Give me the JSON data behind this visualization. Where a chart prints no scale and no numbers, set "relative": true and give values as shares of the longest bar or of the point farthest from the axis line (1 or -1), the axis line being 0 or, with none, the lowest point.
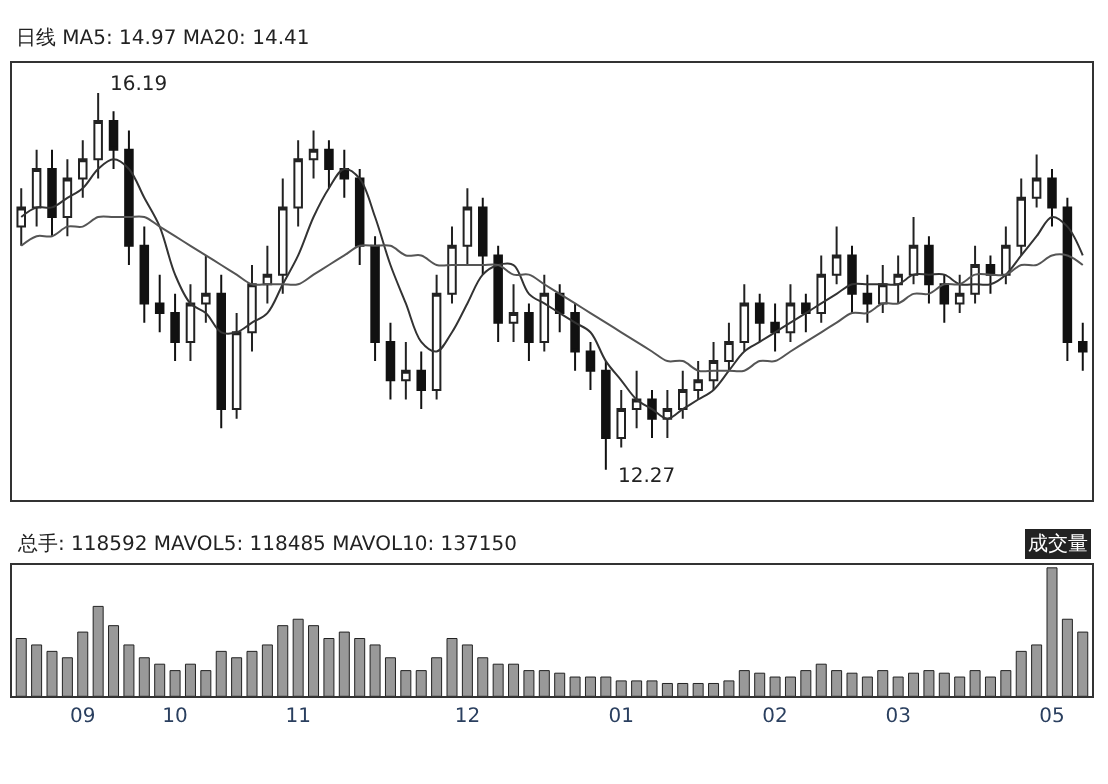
{
  "chart_data": [
    {
      "type": "candlestick",
      "title": "日线 MA5: 14.97 MA20: 14.41",
      "tick_labels": false,
      "categories": [
        null,
        null,
        null,
        null,
        "09",
        null,
        null,
        null,
        null,
        null,
        "10",
        null,
        null,
        null,
        null,
        null,
        null,
        null,
        "11",
        null,
        null,
        null,
        null,
        null,
        null,
        null,
        null,
        null,
        null,
        "12",
        null,
        null,
        null,
        null,
        null,
        null,
        null,
        null,
        null,
        "01",
        null,
        null,
        null,
        null,
        null,
        null,
        null,
        null,
        null,
        "02",
        null,
        null,
        null,
        null,
        null,
        null,
        null,
        "03",
        null,
        null,
        null,
        null,
        null,
        null,
        null,
        null,
        null,
        "05",
        null,
        null
      ],
      "ohlc": [
        [
          14.8,
          15.2,
          14.6,
          15.0
        ],
        [
          15.0,
          15.6,
          14.8,
          15.4
        ],
        [
          15.4,
          15.6,
          14.7,
          14.9
        ],
        [
          14.9,
          15.5,
          14.7,
          15.3
        ],
        [
          15.3,
          15.7,
          15.1,
          15.5
        ],
        [
          15.5,
          16.19,
          15.3,
          15.9
        ],
        [
          15.9,
          16.0,
          15.4,
          15.6
        ],
        [
          15.6,
          15.8,
          14.4,
          14.6
        ],
        [
          14.6,
          14.8,
          13.8,
          14.0
        ],
        [
          14.0,
          14.3,
          13.7,
          13.9
        ],
        [
          13.9,
          14.1,
          13.4,
          13.6
        ],
        [
          13.6,
          14.2,
          13.4,
          14.0
        ],
        [
          14.0,
          14.5,
          13.8,
          14.1
        ],
        [
          14.1,
          14.3,
          12.7,
          12.9
        ],
        [
          12.9,
          13.9,
          12.8,
          13.7
        ],
        [
          13.7,
          14.4,
          13.5,
          14.2
        ],
        [
          14.2,
          14.6,
          14.0,
          14.3
        ],
        [
          14.3,
          15.3,
          14.1,
          15.0
        ],
        [
          15.0,
          15.7,
          14.8,
          15.5
        ],
        [
          15.5,
          15.8,
          15.3,
          15.6
        ],
        [
          15.6,
          15.7,
          15.2,
          15.4
        ],
        [
          15.4,
          15.6,
          15.1,
          15.3
        ],
        [
          15.3,
          15.4,
          14.4,
          14.6
        ],
        [
          14.6,
          14.7,
          13.4,
          13.6
        ],
        [
          13.6,
          13.8,
          13.0,
          13.2
        ],
        [
          13.2,
          13.6,
          13.0,
          13.3
        ],
        [
          13.3,
          13.5,
          12.9,
          13.1
        ],
        [
          13.1,
          14.3,
          13.0,
          14.1
        ],
        [
          14.1,
          14.8,
          14.0,
          14.6
        ],
        [
          14.6,
          15.2,
          14.4,
          15.0
        ],
        [
          15.0,
          15.1,
          14.3,
          14.5
        ],
        [
          14.5,
          14.6,
          13.6,
          13.8
        ],
        [
          13.8,
          14.2,
          13.6,
          13.9
        ],
        [
          13.9,
          14.0,
          13.4,
          13.6
        ],
        [
          13.6,
          14.3,
          13.5,
          14.1
        ],
        [
          14.1,
          14.2,
          13.7,
          13.9
        ],
        [
          13.9,
          14.0,
          13.3,
          13.5
        ],
        [
          13.5,
          13.6,
          13.1,
          13.3
        ],
        [
          13.3,
          13.4,
          12.27,
          12.6
        ],
        [
          12.6,
          13.1,
          12.5,
          12.9
        ],
        [
          12.9,
          13.3,
          12.7,
          13.0
        ],
        [
          13.0,
          13.1,
          12.6,
          12.8
        ],
        [
          12.8,
          13.1,
          12.6,
          12.9
        ],
        [
          12.9,
          13.3,
          12.8,
          13.1
        ],
        [
          13.1,
          13.4,
          13.0,
          13.2
        ],
        [
          13.2,
          13.6,
          13.1,
          13.4
        ],
        [
          13.4,
          13.8,
          13.3,
          13.6
        ],
        [
          13.6,
          14.2,
          13.5,
          14.0
        ],
        [
          14.0,
          14.1,
          13.6,
          13.8
        ],
        [
          13.8,
          14.0,
          13.5,
          13.7
        ],
        [
          13.7,
          14.2,
          13.6,
          14.0
        ],
        [
          14.0,
          14.1,
          13.7,
          13.9
        ],
        [
          13.9,
          14.5,
          13.8,
          14.3
        ],
        [
          14.3,
          14.8,
          14.2,
          14.5
        ],
        [
          14.5,
          14.6,
          13.9,
          14.1
        ],
        [
          14.1,
          14.3,
          13.8,
          14.0
        ],
        [
          14.0,
          14.4,
          13.9,
          14.2
        ],
        [
          14.2,
          14.5,
          14.0,
          14.3
        ],
        [
          14.3,
          14.9,
          14.2,
          14.6
        ],
        [
          14.6,
          14.7,
          14.0,
          14.2
        ],
        [
          14.2,
          14.3,
          13.8,
          14.0
        ],
        [
          14.0,
          14.3,
          13.9,
          14.1
        ],
        [
          14.1,
          14.6,
          14.0,
          14.4
        ],
        [
          14.4,
          14.5,
          14.1,
          14.3
        ],
        [
          14.3,
          14.8,
          14.2,
          14.6
        ],
        [
          14.6,
          15.3,
          14.5,
          15.1
        ],
        [
          15.1,
          15.55,
          15.0,
          15.3
        ],
        [
          15.3,
          15.4,
          14.8,
          15.0
        ],
        [
          15.0,
          15.1,
          13.4,
          13.6
        ],
        [
          13.6,
          13.8,
          13.3,
          13.5
        ]
      ],
      "series": [
        {
          "type": "line",
          "color": "#333333",
          "values": [
            14.9,
            15.0,
            15.0,
            15.1,
            15.2,
            15.4,
            15.5,
            15.4,
            15.1,
            14.8,
            14.3,
            14.0,
            13.9,
            13.7,
            13.7,
            13.8,
            13.9,
            14.2,
            14.5,
            14.9,
            15.2,
            15.4,
            15.3,
            14.9,
            14.4,
            14.0,
            13.6,
            13.5,
            13.7,
            14.0,
            14.3,
            14.4,
            14.4,
            14.1,
            14.0,
            13.9,
            13.8,
            13.7,
            13.4,
            13.2,
            13.0,
            12.9,
            12.8,
            12.9,
            13.0,
            13.1,
            13.3,
            13.5,
            13.6,
            13.7,
            13.8,
            13.9,
            14.0,
            14.1,
            14.2,
            14.2,
            14.2,
            14.2,
            14.3,
            14.3,
            14.3,
            14.2,
            14.2,
            14.2,
            14.3,
            14.5,
            14.7,
            14.9,
            14.8,
            14.5
          ]
        },
        {
          "type": "line",
          "color": "#555555",
          "values": [
            14.6,
            14.7,
            14.7,
            14.8,
            14.8,
            14.9,
            14.9,
            14.9,
            14.9,
            14.8,
            14.7,
            14.6,
            14.5,
            14.4,
            14.3,
            14.2,
            14.2,
            14.2,
            14.2,
            14.3,
            14.4,
            14.5,
            14.6,
            14.6,
            14.6,
            14.5,
            14.5,
            14.4,
            14.4,
            14.4,
            14.4,
            14.4,
            14.3,
            14.3,
            14.2,
            14.1,
            14.0,
            13.9,
            13.8,
            13.7,
            13.6,
            13.5,
            13.4,
            13.4,
            13.3,
            13.3,
            13.3,
            13.3,
            13.4,
            13.4,
            13.5,
            13.6,
            13.7,
            13.8,
            13.9,
            13.9,
            14.0,
            14.0,
            14.1,
            14.1,
            14.2,
            14.2,
            14.3,
            14.3,
            14.3,
            14.4,
            14.4,
            14.5,
            14.5,
            14.4
          ]
        }
      ],
      "annotations": [
        "16.19",
        "12.27"
      ]
    },
    {
      "type": "bar",
      "title": "总手: 118592 MAVOL5: 118485 MAVOL10: 137150",
      "relative": true,
      "tick_labels": "x",
      "color": "#999999",
      "categories": [
        null,
        null,
        null,
        null,
        "09",
        null,
        null,
        null,
        null,
        null,
        "10",
        null,
        null,
        null,
        null,
        null,
        null,
        null,
        "11",
        null,
        null,
        null,
        null,
        null,
        null,
        null,
        null,
        null,
        null,
        "12",
        null,
        null,
        null,
        null,
        null,
        null,
        null,
        null,
        null,
        "01",
        null,
        null,
        null,
        null,
        null,
        null,
        null,
        null,
        null,
        "02",
        null,
        null,
        null,
        null,
        null,
        null,
        null,
        "03",
        null,
        null,
        null,
        null,
        null,
        null,
        null,
        null,
        null,
        "05",
        null,
        null
      ],
      "values": [
        0.45,
        0.4,
        0.35,
        0.3,
        0.5,
        0.7,
        0.55,
        0.4,
        0.3,
        0.25,
        0.2,
        0.25,
        0.2,
        0.35,
        0.3,
        0.35,
        0.4,
        0.55,
        0.6,
        0.55,
        0.45,
        0.5,
        0.45,
        0.4,
        0.3,
        0.2,
        0.2,
        0.3,
        0.45,
        0.4,
        0.3,
        0.25,
        0.25,
        0.2,
        0.2,
        0.18,
        0.15,
        0.15,
        0.15,
        0.12,
        0.12,
        0.12,
        0.1,
        0.1,
        0.1,
        0.1,
        0.12,
        0.2,
        0.18,
        0.15,
        0.15,
        0.2,
        0.25,
        0.2,
        0.18,
        0.15,
        0.2,
        0.15,
        0.18,
        0.2,
        0.18,
        0.15,
        0.2,
        0.15,
        0.2,
        0.35,
        0.4,
        1.0,
        0.6,
        0.5
      ],
      "annotations": [
        "成交量"
      ]
    }
  ]
}
